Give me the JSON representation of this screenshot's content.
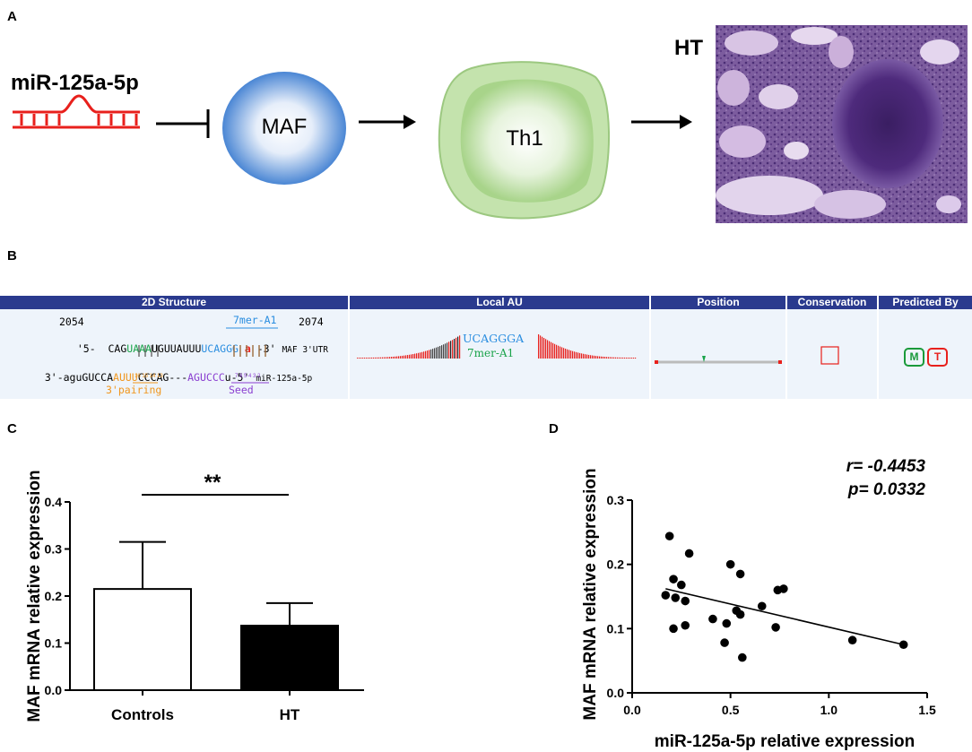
{
  "panels": {
    "a": "A",
    "b": "B",
    "c": "C",
    "d": "D"
  },
  "panel_a": {
    "mirna_label": "miR-125a-5p",
    "maf_label": "MAF",
    "th1_label": "Th1",
    "ht_label": "HT",
    "colors": {
      "mirna": "#e8201c",
      "maf": "#4a86d4",
      "th1": "#a8d48a",
      "tissue": "#8a5aa8"
    }
  },
  "panel_b": {
    "headers": [
      "2D Structure",
      "Local AU",
      "Position",
      "Conservation",
      "Predicted By"
    ],
    "pos_start": "2054",
    "pos_end": "2074",
    "site_type_top": "7mer-A1",
    "utr_prime": "'5-",
    "utr_prime_end": "-3'",
    "utr_label": "MAF 3'UTR",
    "utr_seq_a": "CAG",
    "utr_seq_green": "UAAA",
    "utr_seq_b": "UGUUAUUU",
    "utr_seq_blue": "UCAGGG",
    "utr_seq_red": "a",
    "mir_prefix": "3'-aguGUCCA",
    "mir_orange": "AUUU",
    "mir_mid": "CCCAG---",
    "mir_purple": "AGUCCC",
    "mir_suffix": "u-5'",
    "mir_label": "miR-125a-5p",
    "pairing_numbers": "16 15 14 13",
    "seed_numbers": "7 6 5 4 3 2",
    "pairing_label": "3'pairing",
    "seed_label": "Seed",
    "local_au_site": "UCAGGGA",
    "local_au_type": "7mer-A1",
    "predictors": [
      "M",
      "T"
    ]
  },
  "chart_data": [
    {
      "type": "bar",
      "title": "",
      "categories": [
        "Controls",
        "HT"
      ],
      "values": [
        0.215,
        0.137
      ],
      "errors": [
        0.1,
        0.048
      ],
      "fill": [
        "#ffffff",
        "#000000"
      ],
      "ylabel": "MAF mRNA relative expression",
      "xlabel": "",
      "ylim": [
        0,
        0.4
      ],
      "yticks": [
        "0.0",
        "0.1",
        "0.2",
        "0.3",
        "0.4"
      ],
      "significance": "**"
    },
    {
      "type": "scatter",
      "xlabel": "miR-125a-5p  relative expression",
      "ylabel": "MAF mRNA relative expression",
      "xlim": [
        0,
        1.5
      ],
      "ylim": [
        0,
        0.3
      ],
      "xticks": [
        "0.0",
        "0.5",
        "1.0",
        "1.5"
      ],
      "yticks": [
        "0.0",
        "0.1",
        "0.2",
        "0.3"
      ],
      "r_text": "r= -0.4453",
      "p_text": "p= 0.0332",
      "points": [
        [
          0.17,
          0.152
        ],
        [
          0.19,
          0.244
        ],
        [
          0.21,
          0.1
        ],
        [
          0.21,
          0.177
        ],
        [
          0.22,
          0.148
        ],
        [
          0.25,
          0.168
        ],
        [
          0.27,
          0.105
        ],
        [
          0.27,
          0.143
        ],
        [
          0.29,
          0.217
        ],
        [
          0.41,
          0.115
        ],
        [
          0.47,
          0.078
        ],
        [
          0.48,
          0.108
        ],
        [
          0.5,
          0.2
        ],
        [
          0.53,
          0.128
        ],
        [
          0.55,
          0.122
        ],
        [
          0.55,
          0.185
        ],
        [
          0.56,
          0.055
        ],
        [
          0.66,
          0.135
        ],
        [
          0.73,
          0.102
        ],
        [
          0.74,
          0.16
        ],
        [
          0.77,
          0.162
        ],
        [
          1.12,
          0.082
        ],
        [
          1.38,
          0.075
        ]
      ],
      "fit": {
        "x": [
          0.17,
          1.38
        ],
        "y": [
          0.162,
          0.075
        ]
      }
    }
  ]
}
